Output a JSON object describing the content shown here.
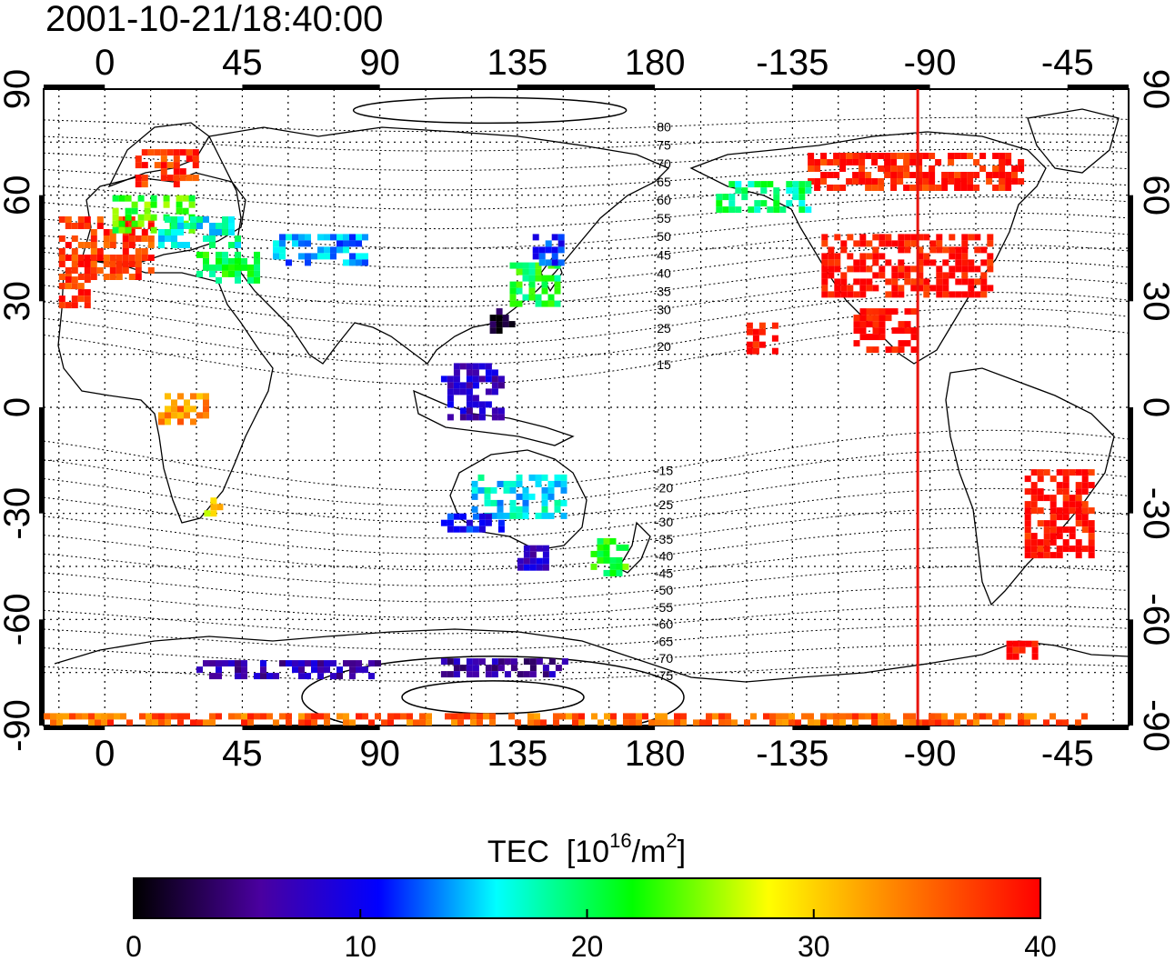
{
  "title": "2001-10-21/18:40:00",
  "map": {
    "x_ticks_top": [
      "0",
      "45",
      "90",
      "135",
      "180",
      "-135",
      "-90",
      "-45"
    ],
    "x_ticks_bottom": [
      "0",
      "45",
      "90",
      "135",
      "180",
      "-135",
      "-90",
      "-45"
    ],
    "x_tick_lon": [
      0,
      45,
      90,
      135,
      180,
      225,
      270,
      315
    ],
    "y_ticks_left": [
      "90",
      "60",
      "30",
      "0",
      "-30",
      "-60",
      "-90"
    ],
    "y_ticks_right": [
      "90",
      "60",
      "30",
      "0",
      "-30",
      "-60",
      "-90"
    ],
    "y_tick_lat": [
      90,
      60,
      30,
      0,
      -30,
      -60,
      -90
    ],
    "lon_range": [
      -20,
      335
    ],
    "lat_range": [
      -90,
      90
    ],
    "grid": "dotted every 15 degrees",
    "marker_meridian_lon": 266,
    "marker_color": "#e8140c",
    "magnetic_latitude_labels": [
      "80",
      "75",
      "70",
      "65",
      "60",
      "55",
      "50",
      "45",
      "40",
      "35",
      "30",
      "25",
      "20",
      "15",
      "-15",
      "-20",
      "-25",
      "-30",
      "-35",
      "-40",
      "-45",
      "-50",
      "-55",
      "-60",
      "-65",
      "-70",
      "-75"
    ],
    "magnetic_latitude_values": [
      80,
      75,
      70,
      65,
      60,
      55,
      50,
      45,
      40,
      35,
      30,
      25,
      20,
      15,
      -15,
      -20,
      -25,
      -30,
      -35,
      -40,
      -45,
      -50,
      -55,
      -60,
      -65,
      -70,
      -75
    ]
  },
  "colorbar": {
    "title_prefix": "TEC  [10",
    "title_exp1": "16",
    "title_mid": "/m",
    "title_exp2": "2",
    "title_suffix": "]",
    "min": 0,
    "max": 40,
    "tick_labels": [
      "0",
      "10",
      "20",
      "30",
      "40"
    ],
    "tick_values": [
      0,
      10,
      20,
      30,
      40
    ],
    "colors": [
      "#000000",
      "#4a00a0",
      "#0000ff",
      "#00ffff",
      "#00ff00",
      "#ffff00",
      "#ff8c00",
      "#ff0000"
    ]
  },
  "chart_data": {
    "type": "heatmap",
    "title": "2001-10-21/18:40:00",
    "value_label": "TEC [10^16/m^2]",
    "value_range": [
      0,
      40
    ],
    "xlim": [
      -20,
      335
    ],
    "ylim": [
      -90,
      90
    ],
    "cells": [
      {
        "lon": 0,
        "lat": 45,
        "lon_span": 30,
        "lat_span": 18,
        "tec": 38
      },
      {
        "lon": -10,
        "lat": 33,
        "lon_span": 10,
        "lat_span": 8,
        "tec": 38
      },
      {
        "lon": 15,
        "lat": 55,
        "lon_span": 25,
        "lat_span": 10,
        "tec": 24
      },
      {
        "lon": 30,
        "lat": 50,
        "lon_span": 25,
        "lat_span": 8,
        "tec": 18
      },
      {
        "lon": 20,
        "lat": 68,
        "lon_span": 20,
        "lat_span": 10,
        "tec": 38
      },
      {
        "lon": 40,
        "lat": 40,
        "lon_span": 20,
        "lat_span": 8,
        "tec": 22
      },
      {
        "lon": 70,
        "lat": 45,
        "lon_span": 30,
        "lat_span": 8,
        "tec": 15
      },
      {
        "lon": 140,
        "lat": 35,
        "lon_span": 15,
        "lat_span": 12,
        "tec": 22
      },
      {
        "lon": 145,
        "lat": 45,
        "lon_span": 10,
        "lat_span": 8,
        "tec": 12
      },
      {
        "lon": 130,
        "lat": 25,
        "lon_span": 8,
        "lat_span": 6,
        "tec": 2
      },
      {
        "lon": 120,
        "lat": 5,
        "lon_span": 20,
        "lat_span": 15,
        "tec": 8
      },
      {
        "lon": 135,
        "lat": -25,
        "lon_span": 30,
        "lat_span": 12,
        "tec": 17
      },
      {
        "lon": 120,
        "lat": -32,
        "lon_span": 20,
        "lat_span": 4,
        "tec": 11
      },
      {
        "lon": 165,
        "lat": -42,
        "lon_span": 12,
        "lat_span": 10,
        "tec": 23
      },
      {
        "lon": 140,
        "lat": -42,
        "lon_span": 10,
        "lat_span": 6,
        "tec": 8
      },
      {
        "lon": 25,
        "lat": 0,
        "lon_span": 15,
        "lat_span": 8,
        "tec": 34
      },
      {
        "lon": 35,
        "lat": -28,
        "lon_span": 5,
        "lat_span": 5,
        "tec": 30
      },
      {
        "lon": 262,
        "lat": 40,
        "lon_span": 55,
        "lat_span": 18,
        "tec": 40
      },
      {
        "lon": 265,
        "lat": 67,
        "lon_span": 70,
        "lat_span": 10,
        "tec": 39
      },
      {
        "lon": 255,
        "lat": 22,
        "lon_span": 20,
        "lat_span": 12,
        "tec": 40
      },
      {
        "lon": 215,
        "lat": 20,
        "lon_span": 10,
        "lat_span": 8,
        "tec": 40
      },
      {
        "lon": 312,
        "lat": -30,
        "lon_span": 22,
        "lat_span": 25,
        "tec": 40
      },
      {
        "lon": 215,
        "lat": 60,
        "lon_span": 30,
        "lat_span": 8,
        "tec": 20
      },
      {
        "lon": 60,
        "lat": -74,
        "lon_span": 60,
        "lat_span": 5,
        "tec": 7
      },
      {
        "lon": 130,
        "lat": -73,
        "lon_span": 40,
        "lat_span": 4,
        "tec": 6
      },
      {
        "lon": 150,
        "lat": -88,
        "lon_span": 340,
        "lat_span": 3,
        "tec": 36
      },
      {
        "lon": 300,
        "lat": -68,
        "lon_span": 10,
        "lat_span": 4,
        "tec": 40
      }
    ]
  }
}
